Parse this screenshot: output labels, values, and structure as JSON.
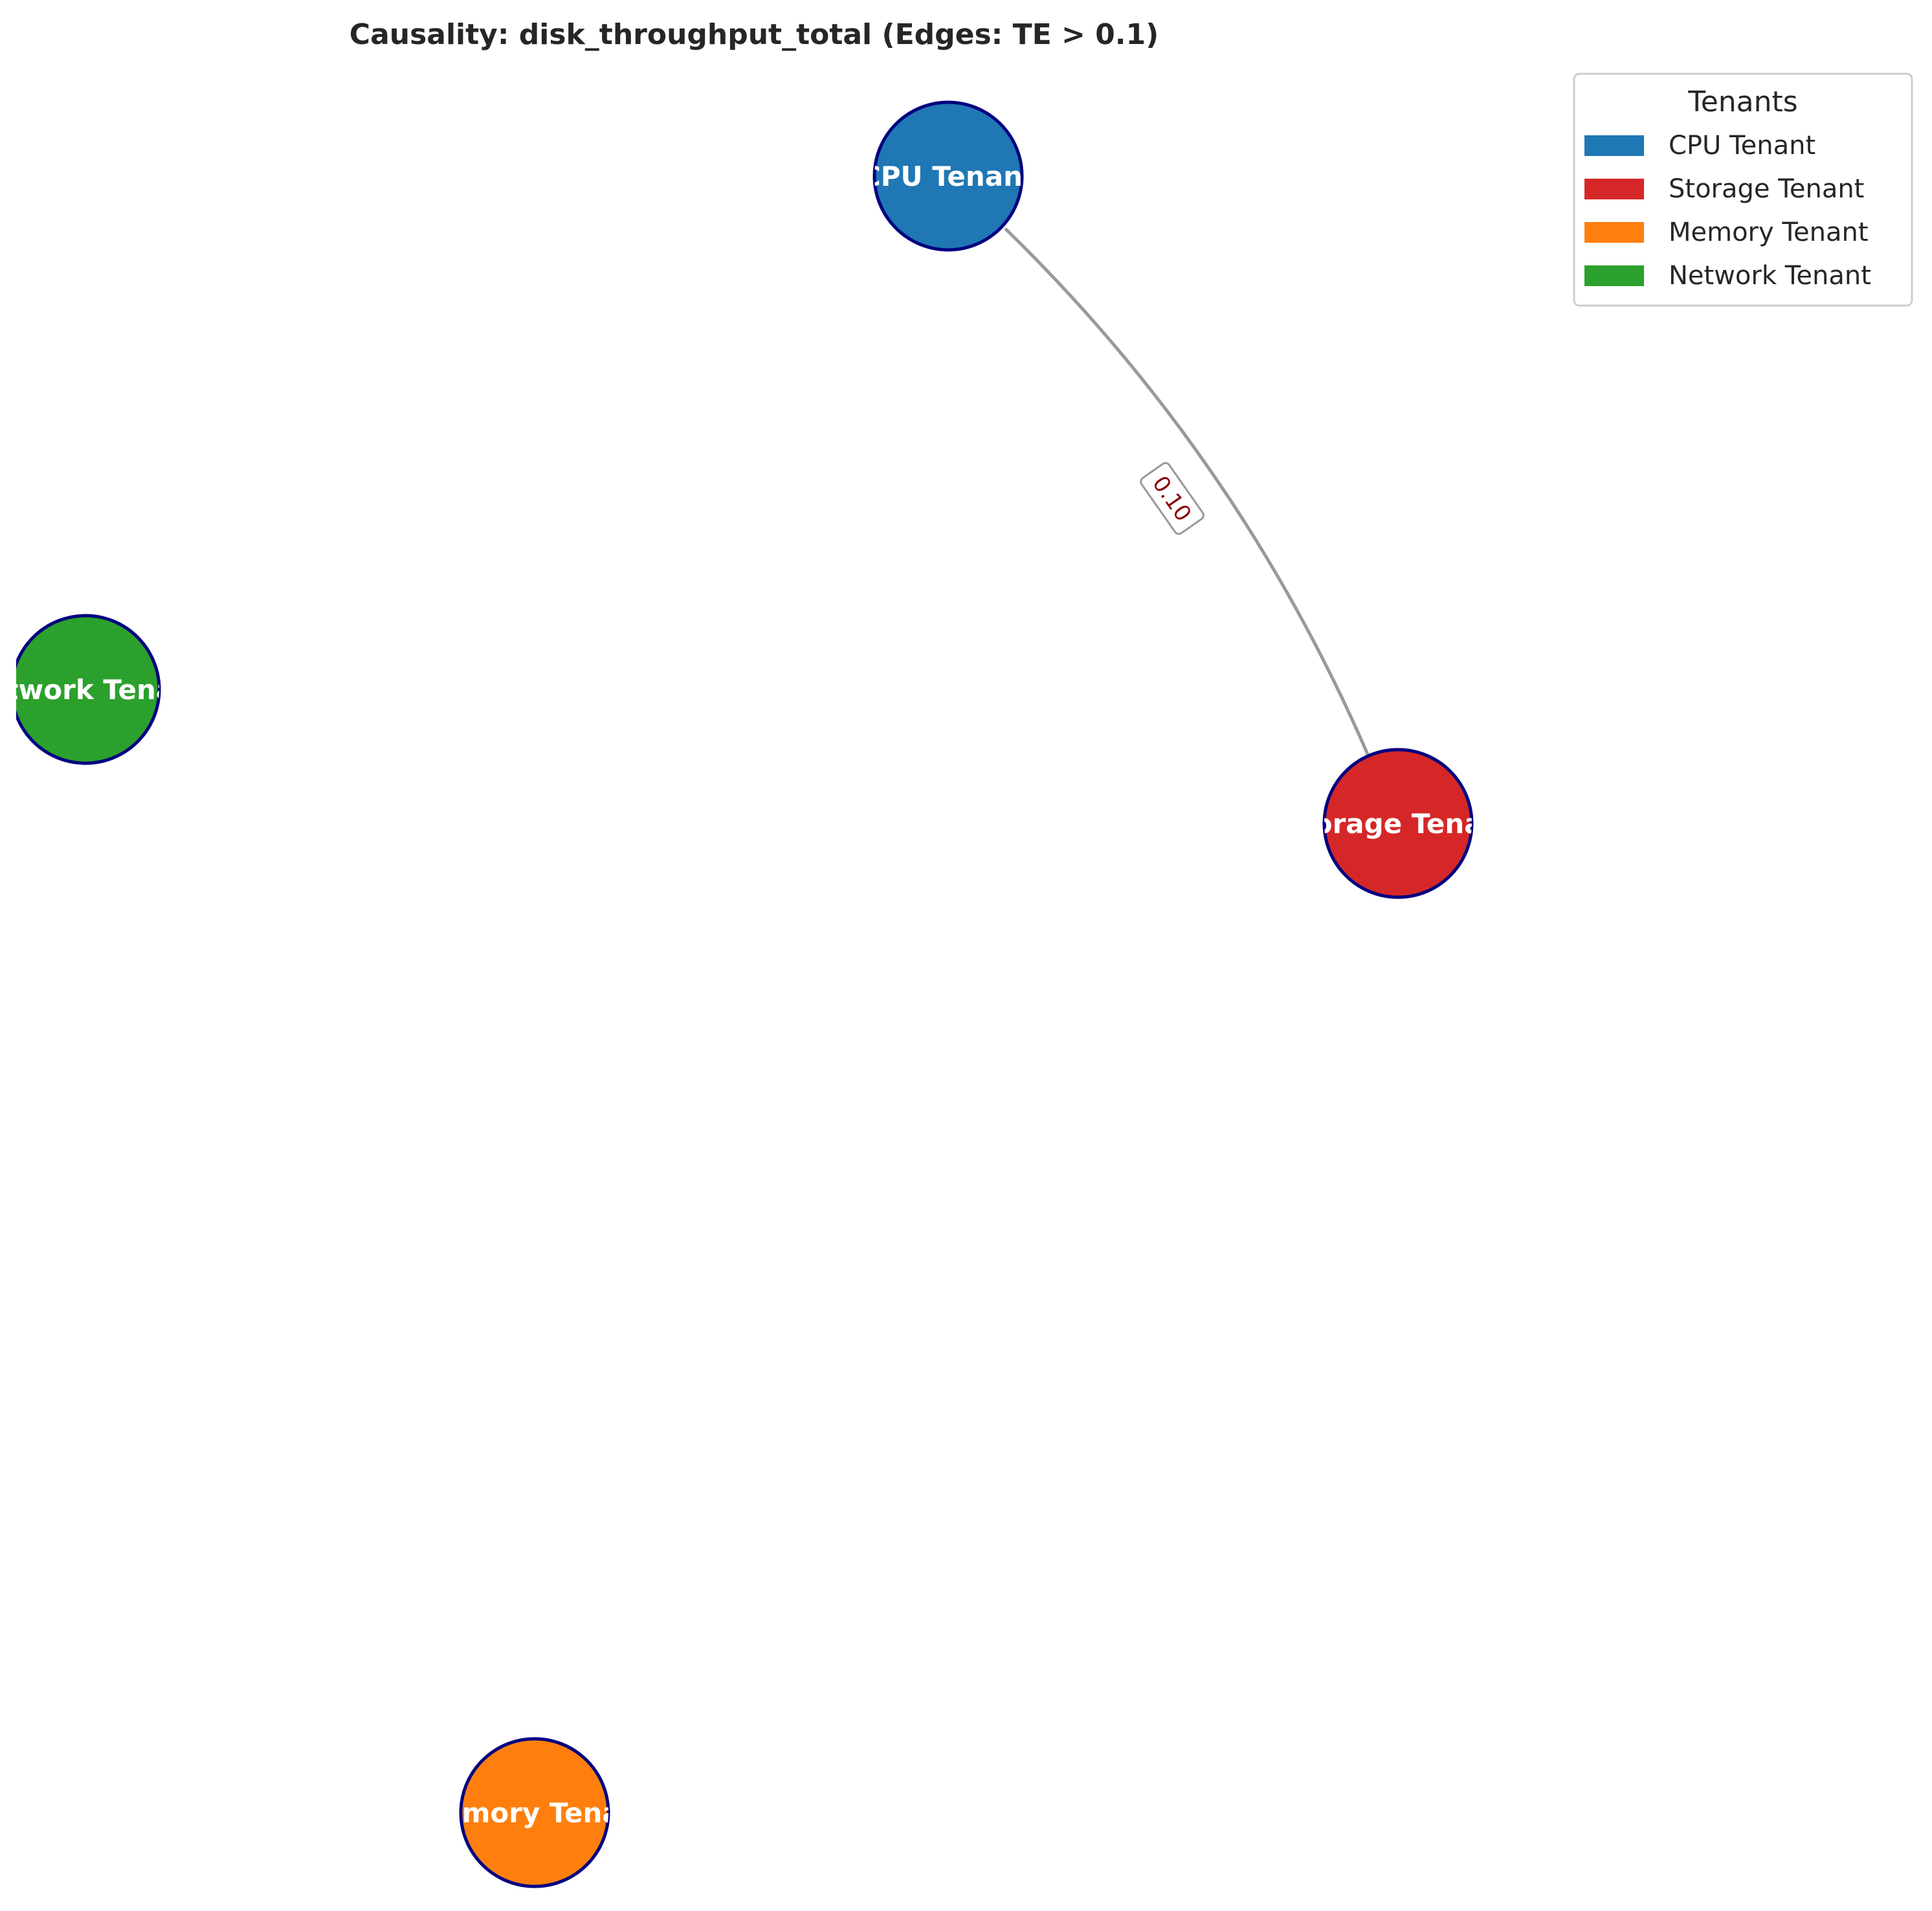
{
  "title": "Causality: disk_throughput_total (Edges: TE > 0.1)",
  "nodes": [
    {
      "id": "cpu",
      "label": "CPU Tenant",
      "color": "#1f77b4"
    },
    {
      "id": "storage",
      "label": "Storage Tenant",
      "color": "#d62728"
    },
    {
      "id": "memory",
      "label": "Memory Tenant",
      "color": "#ff7f0e"
    },
    {
      "id": "network",
      "label": "Network Tenant",
      "color": "#2ca02c"
    }
  ],
  "node_border_color": "#000080",
  "edges": [
    {
      "source": "cpu",
      "target": "storage",
      "label": "0.10",
      "color": "#999999"
    }
  ],
  "legend": {
    "title": "Tenants",
    "placement": "top-right",
    "items": [
      {
        "label": "CPU Tenant",
        "color": "#1f77b4"
      },
      {
        "label": "Storage Tenant",
        "color": "#d62728"
      },
      {
        "label": "Memory Tenant",
        "color": "#ff7f0e"
      },
      {
        "label": "Network Tenant",
        "color": "#2ca02c"
      }
    ]
  }
}
